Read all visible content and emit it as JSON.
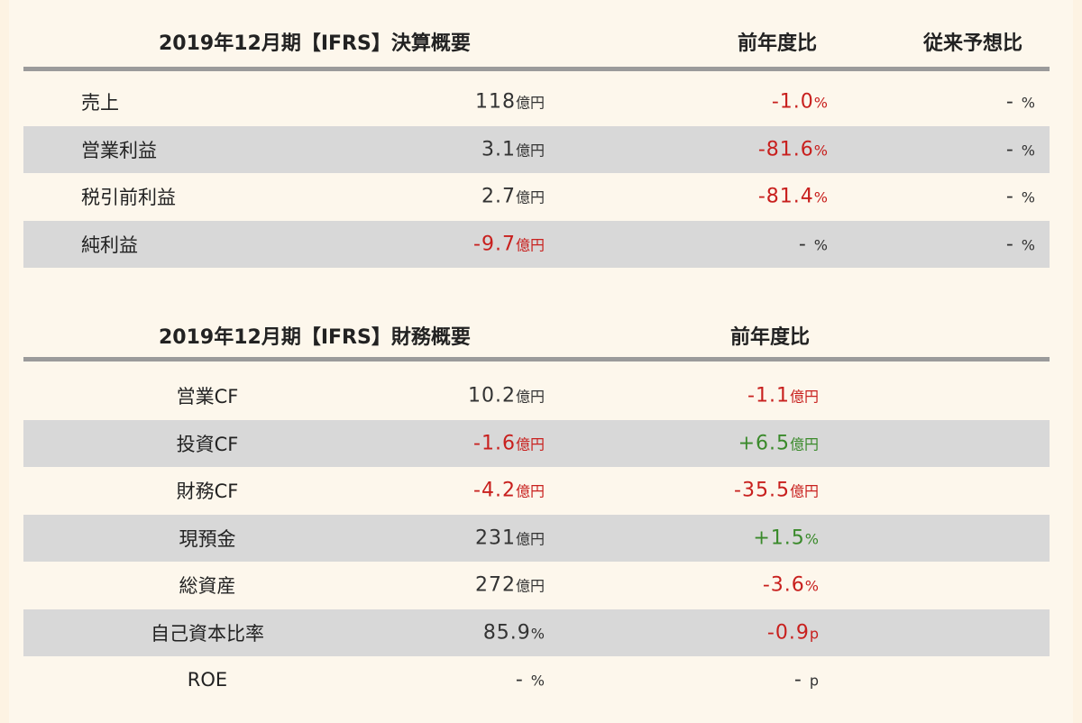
{
  "income": {
    "header": {
      "title": "2019年12月期【IFRS】決算概要",
      "yoy": "前年度比",
      "vs_forecast": "従来予想比"
    },
    "rows": [
      {
        "label": "売上",
        "value": "118",
        "value_unit": "億円",
        "yoy": "-1.0",
        "yoy_unit": "%",
        "forecast": "-",
        "forecast_unit": "%"
      },
      {
        "label": "営業利益",
        "value": "3.1",
        "value_unit": "億円",
        "yoy": "-81.6",
        "yoy_unit": "%",
        "forecast": "-",
        "forecast_unit": "%"
      },
      {
        "label": "税引前利益",
        "value": "2.7",
        "value_unit": "億円",
        "yoy": "-81.4",
        "yoy_unit": "%",
        "forecast": "-",
        "forecast_unit": "%"
      },
      {
        "label": "純利益",
        "value": "-9.7",
        "value_unit": "億円",
        "yoy": "-",
        "yoy_unit": "%",
        "forecast": "-",
        "forecast_unit": "%"
      }
    ]
  },
  "finance": {
    "header": {
      "title": "2019年12月期【IFRS】財務概要",
      "yoy": "前年度比"
    },
    "rows": [
      {
        "label": "営業CF",
        "value": "10.2",
        "value_unit": "億円",
        "yoy": "-1.1",
        "yoy_unit": "億円"
      },
      {
        "label": "投資CF",
        "value": "-1.6",
        "value_unit": "億円",
        "yoy": "+6.5",
        "yoy_unit": "億円"
      },
      {
        "label": "財務CF",
        "value": "-4.2",
        "value_unit": "億円",
        "yoy": "-35.5",
        "yoy_unit": "億円"
      },
      {
        "label": "現預金",
        "value": "231",
        "value_unit": "億円",
        "yoy": "+1.5",
        "yoy_unit": "%"
      },
      {
        "label": "総資産",
        "value": "272",
        "value_unit": "億円",
        "yoy": "-3.6",
        "yoy_unit": "%"
      },
      {
        "label": "自己資本比率",
        "value": "85.9",
        "value_unit": "%",
        "yoy": "-0.9",
        "yoy_unit": "p"
      },
      {
        "label": "ROE",
        "value": "-",
        "value_unit": "%",
        "yoy": "-",
        "yoy_unit": "p"
      }
    ]
  },
  "colors": {
    "negative": "#c8201e",
    "positive": "#3a8a2b",
    "stripe": "#d8d8d8",
    "background": "#fdf3e3"
  }
}
